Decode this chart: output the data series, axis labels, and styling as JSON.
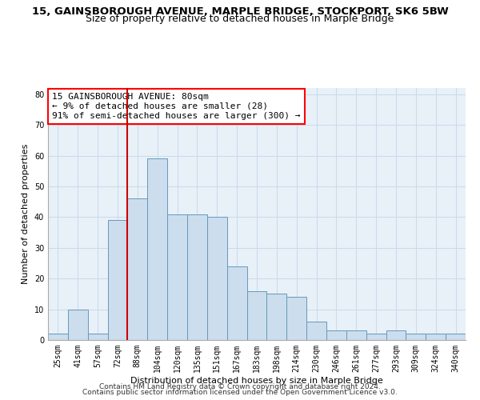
{
  "title": "15, GAINSBOROUGH AVENUE, MARPLE BRIDGE, STOCKPORT, SK6 5BW",
  "subtitle": "Size of property relative to detached houses in Marple Bridge",
  "xlabel": "Distribution of detached houses by size in Marple Bridge",
  "ylabel": "Number of detached properties",
  "categories": [
    "25sqm",
    "41sqm",
    "57sqm",
    "72sqm",
    "88sqm",
    "104sqm",
    "120sqm",
    "135sqm",
    "151sqm",
    "167sqm",
    "183sqm",
    "198sqm",
    "214sqm",
    "230sqm",
    "246sqm",
    "261sqm",
    "277sqm",
    "293sqm",
    "309sqm",
    "324sqm",
    "340sqm"
  ],
  "values": [
    2,
    10,
    2,
    39,
    46,
    59,
    41,
    41,
    40,
    24,
    16,
    15,
    14,
    6,
    3,
    3,
    2,
    3,
    2,
    2,
    2
  ],
  "bar_color": "#ccdded",
  "bar_edge_color": "#6699bb",
  "vline_color": "#cc0000",
  "vline_x_index": 3.5,
  "annotation_line1": "15 GAINSBOROUGH AVENUE: 80sqm",
  "annotation_line2": "← 9% of detached houses are smaller (28)",
  "annotation_line3": "91% of semi-detached houses are larger (300) →",
  "annotation_box_facecolor": "white",
  "annotation_box_edgecolor": "red",
  "ylim": [
    0,
    82
  ],
  "yticks": [
    0,
    10,
    20,
    30,
    40,
    50,
    60,
    70,
    80
  ],
  "grid_color": "#c8daea",
  "background_color": "#e8f0f8",
  "footer_line1": "Contains HM Land Registry data © Crown copyright and database right 2024.",
  "footer_line2": "Contains public sector information licensed under the Open Government Licence v3.0.",
  "title_fontsize": 9.5,
  "subtitle_fontsize": 9,
  "annotation_fontsize": 8,
  "axis_label_fontsize": 8,
  "tick_fontsize": 7,
  "footer_fontsize": 6.5
}
